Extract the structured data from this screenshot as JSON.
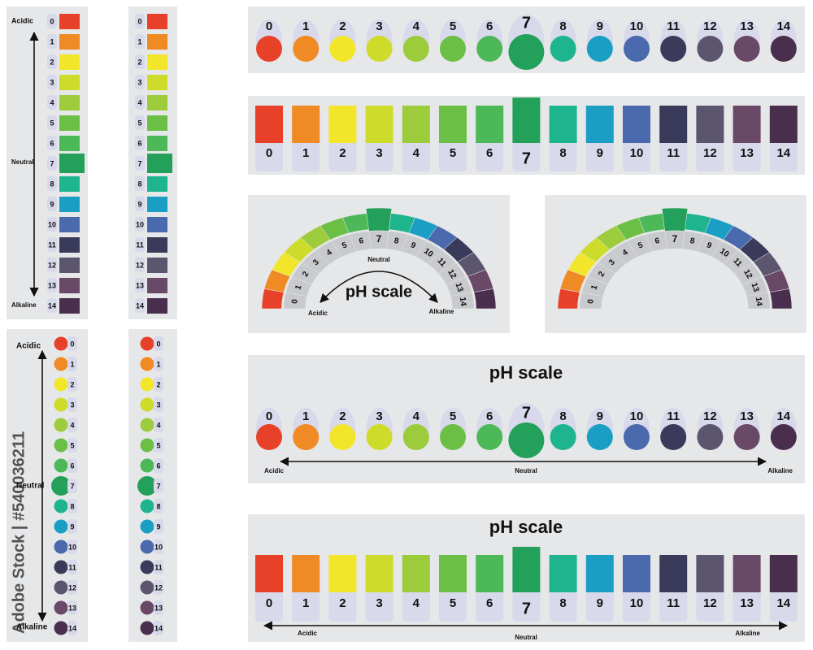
{
  "ph_levels": [
    "0",
    "1",
    "2",
    "3",
    "4",
    "5",
    "6",
    "7",
    "8",
    "9",
    "10",
    "11",
    "12",
    "13",
    "14"
  ],
  "colors": [
    "#e8412a",
    "#f08a24",
    "#f2e62a",
    "#cddc2a",
    "#9ccb3b",
    "#6cbf45",
    "#4db858",
    "#23a05a",
    "#1db48e",
    "#1a9ec4",
    "#4a6aad",
    "#3a3a5a",
    "#5c5570",
    "#6a4868",
    "#4a2e4e"
  ],
  "labels": {
    "acidic": "Acidic",
    "neutral": "Neutral",
    "alkaline": "Alkaline"
  },
  "title": "pH scale",
  "watermark": "Adobe Stock | #540036211"
}
